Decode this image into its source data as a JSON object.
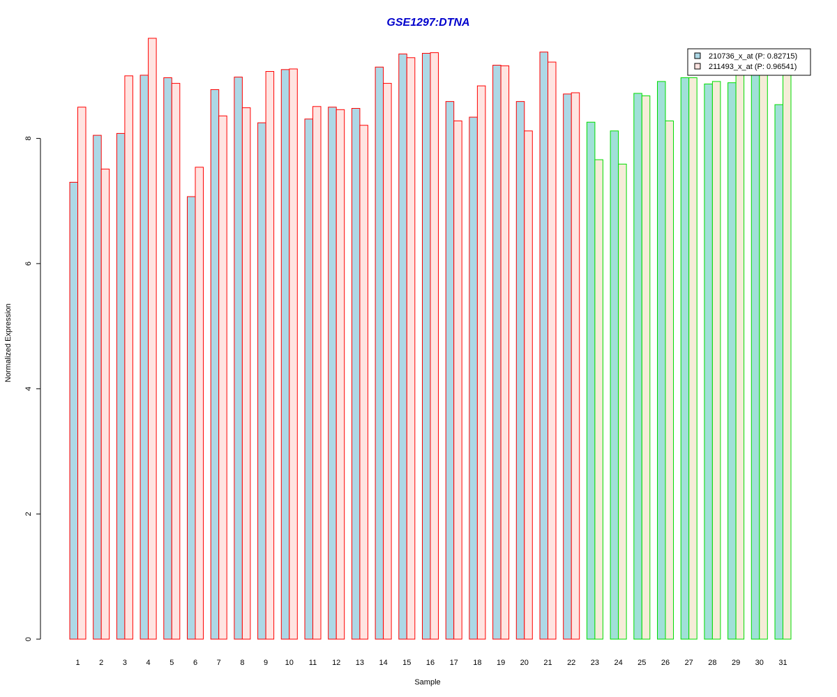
{
  "chart_data": {
    "type": "bar",
    "title": "GSE1297:DTNA",
    "xlabel": "Sample",
    "ylabel": "Normalized Expression",
    "ylim": [
      0,
      9.6
    ],
    "yticks": [
      0,
      2,
      4,
      6,
      8
    ],
    "categories": [
      "1",
      "2",
      "3",
      "4",
      "5",
      "6",
      "7",
      "8",
      "9",
      "10",
      "11",
      "12",
      "13",
      "14",
      "15",
      "16",
      "17",
      "18",
      "19",
      "20",
      "21",
      "22",
      "23",
      "24",
      "25",
      "26",
      "27",
      "28",
      "29",
      "30",
      "31"
    ],
    "groups": {
      "red_group_samples": "1-22",
      "green_group_samples": "23-31",
      "red_outline": "#ff0000",
      "green_outline": "#00dd00"
    },
    "series": [
      {
        "name": "210736_x_at (P: 0.82715)",
        "fill_red_group": "#add8e6",
        "fill_green_group": "#a0e0d8",
        "values": [
          7.3,
          8.05,
          8.08,
          9.01,
          8.97,
          7.07,
          8.78,
          8.98,
          8.25,
          9.1,
          8.31,
          8.5,
          8.48,
          9.14,
          9.35,
          9.36,
          8.59,
          8.34,
          9.17,
          8.59,
          9.38,
          8.71,
          8.26,
          8.12,
          8.72,
          8.91,
          8.97,
          8.87,
          8.89,
          9.07,
          8.54
        ]
      },
      {
        "name": "211493_x_at (P: 0.96541)",
        "fill_red_group": "#ffe4e1",
        "fill_green_group": "#f5ecd8",
        "values": [
          8.5,
          7.51,
          9.0,
          9.6,
          8.88,
          7.54,
          8.36,
          8.49,
          9.07,
          9.11,
          8.51,
          8.46,
          8.21,
          8.88,
          9.29,
          9.37,
          8.28,
          8.84,
          9.16,
          8.12,
          9.22,
          8.73,
          7.66,
          7.59,
          8.68,
          8.28,
          8.97,
          8.91,
          9.05,
          9.15,
          9.05
        ]
      }
    ],
    "legend": {
      "position": "top-right",
      "entries": [
        "210736_x_at (P: 0.82715)",
        "211493_x_at (P: 0.96541)"
      ],
      "swatches": [
        "#add8e6",
        "#ffe4e1"
      ]
    },
    "colors": {
      "title": "#0000cc",
      "axis": "#000000"
    }
  }
}
